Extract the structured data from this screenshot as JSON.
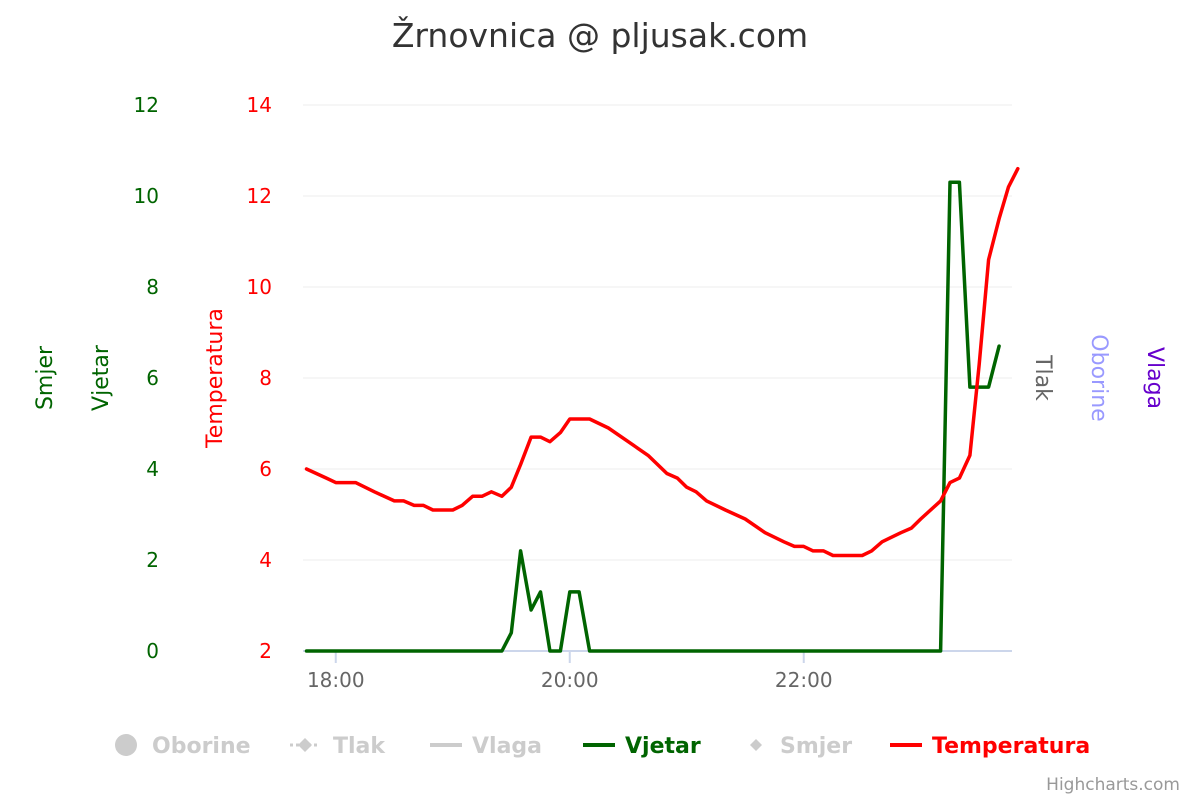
{
  "chart_data": {
    "type": "line",
    "title": "Žrnovnica @ pljusak.com",
    "credits": "Highcharts.com",
    "x_axis": {
      "ticks": [
        "18:00",
        "20:00",
        "22:00"
      ],
      "tick_hours": [
        18,
        20,
        22
      ],
      "range_hours": [
        17.72,
        23.78
      ]
    },
    "y_axes": {
      "wind": {
        "ticks": [
          "0",
          "2",
          "4",
          "6",
          "8",
          "10",
          "12"
        ],
        "range": [
          0,
          12
        ],
        "titles": [
          "Smjer",
          "Vjetar"
        ],
        "color": "#006400"
      },
      "temperature": {
        "ticks": [
          "2",
          "4",
          "6",
          "8",
          "10",
          "12",
          "14"
        ],
        "range": [
          2,
          14
        ],
        "title": "Temperatura",
        "color": "#ff0000"
      },
      "right_titles": [
        {
          "label": "Tlak",
          "color": "#666666"
        },
        {
          "label": "Oborine",
          "color": "#9999ff"
        },
        {
          "label": "Vlaga",
          "color": "#6600cc"
        }
      ]
    },
    "legend": [
      {
        "label": "Oborine",
        "symbol": "circle",
        "visible": false
      },
      {
        "label": "Tlak",
        "symbol": "dash-diamond",
        "visible": false
      },
      {
        "label": "Vlaga",
        "symbol": "line",
        "visible": false
      },
      {
        "label": "Vjetar",
        "symbol": "line",
        "color": "#006400",
        "visible": true
      },
      {
        "label": "Smjer",
        "symbol": "diamond",
        "visible": false
      },
      {
        "label": "Temperatura",
        "symbol": "line",
        "color": "#ff0000",
        "visible": true
      }
    ],
    "series": [
      {
        "name": "Vjetar",
        "color": "#006400",
        "axis": "wind",
        "points": [
          [
            17.75,
            0
          ],
          [
            19.42,
            0
          ],
          [
            19.5,
            0.4
          ],
          [
            19.58,
            2.2
          ],
          [
            19.67,
            0.9
          ],
          [
            19.75,
            1.3
          ],
          [
            19.83,
            0
          ],
          [
            19.92,
            0
          ],
          [
            20.0,
            1.3
          ],
          [
            20.08,
            1.3
          ],
          [
            20.17,
            0
          ],
          [
            23.17,
            0
          ],
          [
            23.25,
            10.3
          ],
          [
            23.33,
            10.3
          ],
          [
            23.42,
            5.8
          ],
          [
            23.58,
            5.8
          ],
          [
            23.67,
            6.7
          ]
        ]
      },
      {
        "name": "Temperatura",
        "color": "#ff0000",
        "axis": "temperature",
        "points": [
          [
            17.75,
            6.0
          ],
          [
            17.92,
            5.8
          ],
          [
            18.0,
            5.7
          ],
          [
            18.17,
            5.7
          ],
          [
            18.33,
            5.5
          ],
          [
            18.5,
            5.3
          ],
          [
            18.58,
            5.3
          ],
          [
            18.67,
            5.2
          ],
          [
            18.75,
            5.2
          ],
          [
            18.83,
            5.1
          ],
          [
            19.0,
            5.1
          ],
          [
            19.08,
            5.2
          ],
          [
            19.17,
            5.4
          ],
          [
            19.25,
            5.4
          ],
          [
            19.33,
            5.5
          ],
          [
            19.42,
            5.4
          ],
          [
            19.5,
            5.6
          ],
          [
            19.58,
            6.1
          ],
          [
            19.67,
            6.7
          ],
          [
            19.75,
            6.7
          ],
          [
            19.83,
            6.6
          ],
          [
            19.92,
            6.8
          ],
          [
            20.0,
            7.1
          ],
          [
            20.17,
            7.1
          ],
          [
            20.25,
            7.0
          ],
          [
            20.33,
            6.9
          ],
          [
            20.5,
            6.6
          ],
          [
            20.67,
            6.3
          ],
          [
            20.83,
            5.9
          ],
          [
            20.92,
            5.8
          ],
          [
            21.0,
            5.6
          ],
          [
            21.08,
            5.5
          ],
          [
            21.17,
            5.3
          ],
          [
            21.33,
            5.1
          ],
          [
            21.5,
            4.9
          ],
          [
            21.67,
            4.6
          ],
          [
            21.83,
            4.4
          ],
          [
            21.92,
            4.3
          ],
          [
            22.0,
            4.3
          ],
          [
            22.08,
            4.2
          ],
          [
            22.17,
            4.2
          ],
          [
            22.25,
            4.1
          ],
          [
            22.5,
            4.1
          ],
          [
            22.58,
            4.2
          ],
          [
            22.67,
            4.4
          ],
          [
            22.83,
            4.6
          ],
          [
            22.92,
            4.7
          ],
          [
            23.0,
            4.9
          ],
          [
            23.17,
            5.3
          ],
          [
            23.25,
            5.7
          ],
          [
            23.33,
            5.8
          ],
          [
            23.42,
            6.3
          ],
          [
            23.5,
            8.3
          ],
          [
            23.58,
            10.6
          ],
          [
            23.67,
            11.5
          ],
          [
            23.75,
            12.2
          ],
          [
            23.83,
            12.6
          ]
        ]
      }
    ]
  }
}
